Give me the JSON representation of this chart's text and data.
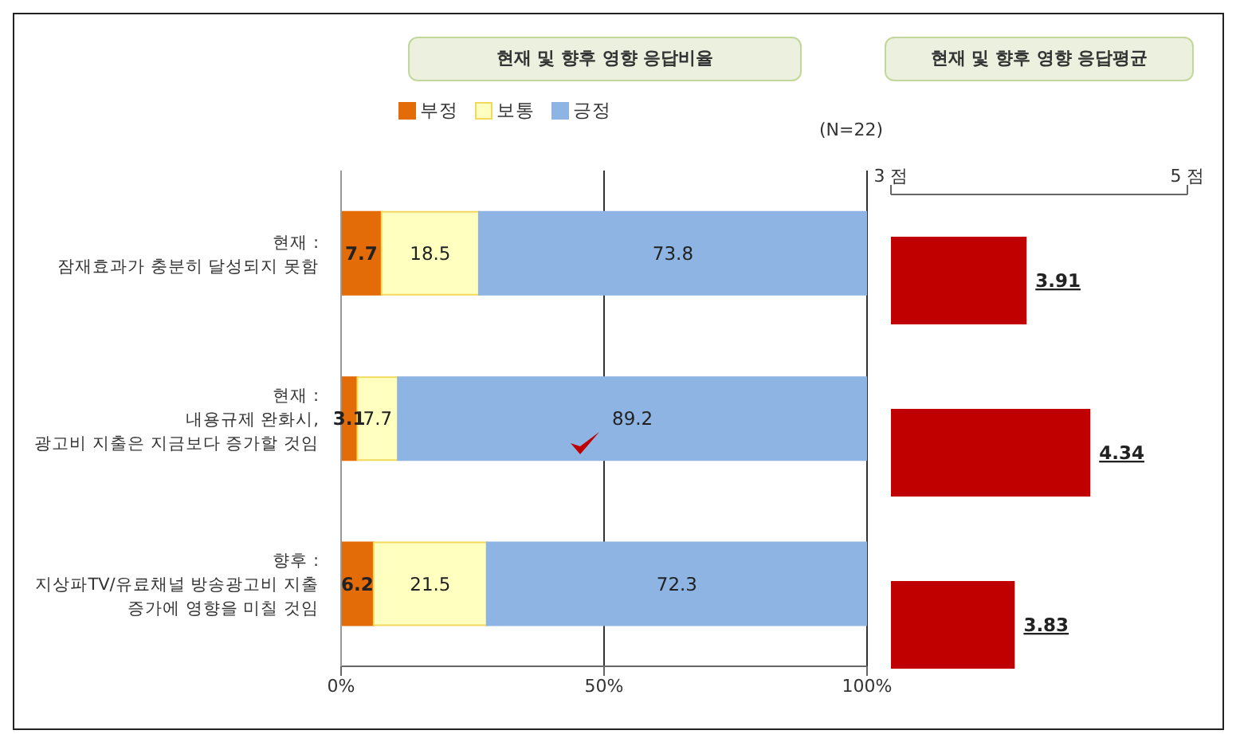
{
  "chart_data": [
    {
      "type": "bar",
      "title": "현재 및 향후 영향 응답비율",
      "orientation": "horizontal",
      "stacked": true,
      "categories": [
        "현재 :\n잠재효과가 충분히 달성되지 못함",
        "현재 :\n내용규제 완화시,\n광고비 지출은 지금보다 증가할 것임",
        "향후 :\n지상파TV/유료채널 방송광고비 지출\n증가에  영향을 미칠 것임"
      ],
      "series": [
        {
          "name": "부정",
          "color": "#e36c09",
          "values": [
            7.7,
            3.1,
            6.2
          ]
        },
        {
          "name": "보통",
          "color": "#ffffc0",
          "values": [
            18.5,
            7.7,
            21.5
          ]
        },
        {
          "name": "긍정",
          "color": "#8db4e2",
          "values": [
            73.8,
            89.2,
            72.3
          ]
        }
      ],
      "xlim": [
        0,
        100
      ],
      "xticks": [
        {
          "value": 0,
          "label": "0%"
        },
        {
          "value": 50,
          "label": "50%"
        },
        {
          "value": 100,
          "label": "100%"
        }
      ],
      "grid": "x",
      "legend": "top",
      "data_labels": true,
      "annotations": [
        "(N=22)"
      ]
    },
    {
      "type": "bar",
      "title": "현재 및 향후 영향 응답평균",
      "orientation": "horizontal",
      "categories": [
        null,
        null,
        null
      ],
      "series": [
        {
          "color": "#c00000",
          "values": [
            3.91,
            4.34,
            3.83
          ]
        }
      ],
      "xlim": [
        3,
        5
      ],
      "xticks": [
        {
          "value": 3,
          "label": "3 점"
        },
        {
          "value": 5,
          "label": "5 점"
        }
      ],
      "tick_labels": "x",
      "data_labels": true
    }
  ]
}
